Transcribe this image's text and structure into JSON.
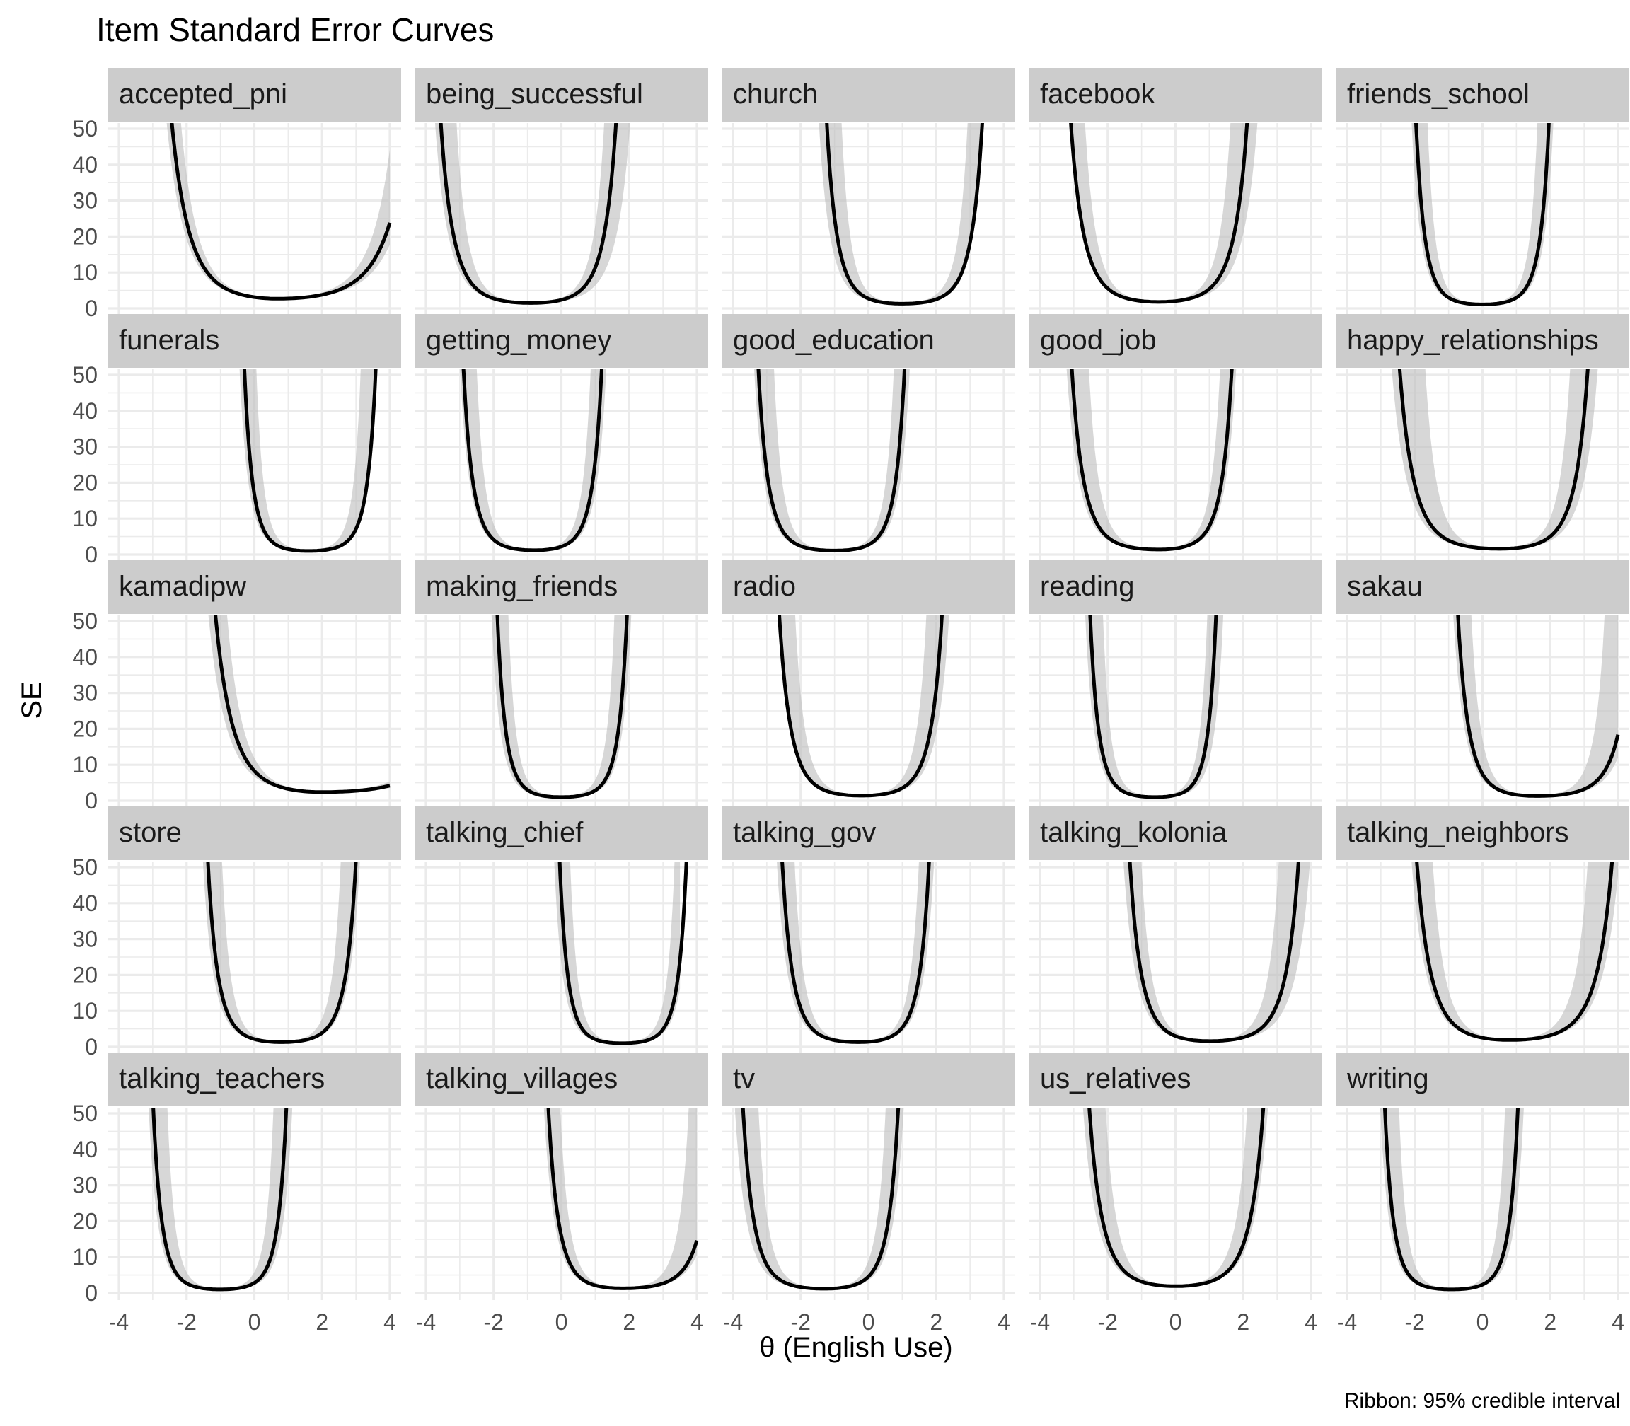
{
  "chart_data": {
    "type": "line",
    "title": "Item Standard Error Curves",
    "xlabel": "θ (English Use)",
    "ylabel": "SE",
    "caption": "Ribbon: 95% credible interval",
    "xlim": [
      -4,
      4
    ],
    "ylim": [
      0,
      50
    ],
    "x_ticks": [
      -4,
      -2,
      0,
      2,
      4
    ],
    "y_ticks": [
      0,
      10,
      20,
      30,
      40,
      50
    ],
    "grid": true,
    "facet_columns": 5,
    "colors": {
      "line": "#000000",
      "ribbon": "#bdbdbd",
      "strip": "#cccccc",
      "grid": "#ebebeb"
    },
    "panels": [
      {
        "name": "accepted_pni",
        "se": {
          "type": "curve",
          "m": 2.7,
          "center": 0.7,
          "kL": 0.3,
          "kR": 0.2,
          "x0": -4,
          "x1": 4
        },
        "ribbon": {
          "type": "band",
          "center": 0.7,
          "loBase": 2.5,
          "loL": 0.28,
          "loR": 0.18,
          "hiBase": 2.9,
          "hiL": 0.35,
          "hiR": 0.25,
          "x0": -4,
          "x1": 4
        }
      },
      {
        "name": "being_successful",
        "se": {
          "type": "curve",
          "m": 1.5,
          "center": -0.9,
          "kL": 0.5,
          "kR": 0.56,
          "x0": -4,
          "x1": 4
        },
        "ribbon": {
          "type": "band",
          "center": -0.9,
          "loBase": 1.4,
          "loL": 0.45,
          "loR": 0.42,
          "hiBase": 1.6,
          "hiL": 0.72,
          "hiR": 0.74,
          "x0": -4,
          "x1": 3.5
        }
      },
      {
        "name": "church",
        "se": {
          "type": "curve",
          "m": 1.3,
          "center": 1.0,
          "kL": 0.74,
          "kR": 0.66,
          "x0": -3.7,
          "x1": 4
        },
        "ribbon": {
          "type": "band",
          "center": 1.0,
          "loBase": 1.2,
          "loL": 0.62,
          "loR": 0.66,
          "hiBase": 1.5,
          "hiL": 1.1,
          "hiR": 0.95,
          "x0": -2.4,
          "x1": 4
        }
      },
      {
        "name": "facebook",
        "se": {
          "type": "curve",
          "m": 1.8,
          "center": -0.5,
          "kL": 0.5,
          "kR": 0.49,
          "x0": -4,
          "x1": 4
        },
        "ribbon": {
          "type": "band",
          "center": -0.5,
          "loBase": 1.7,
          "loL": 0.5,
          "loR": 0.4,
          "hiBase": 1.9,
          "hiL": 0.7,
          "hiR": 0.73,
          "x0": -4,
          "x1": 4
        }
      },
      {
        "name": "friends_school",
        "se": {
          "type": "curve",
          "m": 1.1,
          "center": 0.0,
          "kL": 1.0,
          "kR": 1.0,
          "x0": -3.7,
          "x1": 3.8
        },
        "ribbon": {
          "type": "band",
          "center": 0.0,
          "loBase": 1.0,
          "loL": 0.9,
          "loR": 0.9,
          "hiBase": 1.3,
          "hiL": 1.4,
          "hiR": 1.4,
          "x0": -2.8,
          "x1": 2.8
        }
      },
      {
        "name": "funerals",
        "se": {
          "type": "curve",
          "m": 1.0,
          "center": 1.6,
          "kL": 1.1,
          "kR": 1.0,
          "x0": -2.0,
          "x1": 4
        },
        "ribbon": {
          "type": "band",
          "center": 1.6,
          "loBase": 1.0,
          "loL": 0.95,
          "loR": 0.95,
          "hiBase": 1.3,
          "hiL": 1.55,
          "hiR": 1.55,
          "x0": -0.8,
          "x1": 3.8
        }
      },
      {
        "name": "getting_money",
        "se": {
          "type": "curve",
          "m": 1.2,
          "center": -0.8,
          "kL": 0.86,
          "kR": 0.95,
          "x0": -4,
          "x1": 3.0
        },
        "ribbon": {
          "type": "band",
          "center": -0.8,
          "loBase": 1.1,
          "loL": 0.8,
          "loR": 0.85,
          "hiBase": 1.4,
          "hiL": 1.25,
          "hiR": 1.3,
          "x0": -3.5,
          "x1": 2.0
        }
      },
      {
        "name": "good_education",
        "se": {
          "type": "curve",
          "m": 1.1,
          "center": -1.0,
          "kL": 0.76,
          "kR": 0.9,
          "x0": -4,
          "x1": 3.2
        },
        "ribbon": {
          "type": "band",
          "center": -1.0,
          "loBase": 1.0,
          "loL": 0.7,
          "loR": 0.8,
          "hiBase": 1.3,
          "hiL": 1.15,
          "hiR": 1.2,
          "x0": -4,
          "x1": 2.0
        }
      },
      {
        "name": "good_job",
        "se": {
          "type": "curve",
          "m": 1.4,
          "center": -0.5,
          "kL": 0.55,
          "kR": 0.77,
          "x0": -4,
          "x1": 3.8
        },
        "ribbon": {
          "type": "band",
          "center": -0.5,
          "loBase": 1.3,
          "loL": 0.5,
          "loR": 0.7,
          "hiBase": 1.6,
          "hiL": 0.82,
          "hiR": 1.05,
          "x0": -4,
          "x1": 2.7
        }
      },
      {
        "name": "happy_relationships",
        "se": {
          "type": "curve",
          "m": 1.6,
          "center": 0.5,
          "kL": 0.4,
          "kR": 0.51,
          "x0": -4,
          "x1": 4
        },
        "ribbon": {
          "type": "band",
          "center": 0.5,
          "loBase": 1.5,
          "loL": 0.35,
          "loR": 0.42,
          "hiBase": 1.8,
          "hiL": 0.7,
          "hiR": 0.77,
          "x0": -4,
          "x1": 4
        }
      },
      {
        "name": "kamadipw",
        "se": {
          "type": "curve",
          "m": 2.4,
          "center": 2.0,
          "kL": 0.31,
          "kR": 0.14,
          "x0": -4,
          "x1": 4
        },
        "ribbon": {
          "type": "band",
          "center": 2.0,
          "loBase": 2.2,
          "loL": 0.28,
          "loR": 0.12,
          "hiBase": 2.6,
          "hiL": 0.38,
          "hiR": 0.18,
          "x0": -4,
          "x1": 4
        }
      },
      {
        "name": "making_friends",
        "se": {
          "type": "curve",
          "m": 1.0,
          "center": 0.0,
          "kL": 1.1,
          "kR": 1.05,
          "x0": -3.6,
          "x1": 3.6
        },
        "ribbon": {
          "type": "band",
          "center": 0.0,
          "loBase": 0.9,
          "loL": 0.95,
          "loR": 0.95,
          "hiBase": 1.3,
          "hiL": 1.5,
          "hiR": 1.5,
          "x0": -2.5,
          "x1": 2.5
        }
      },
      {
        "name": "radio",
        "se": {
          "type": "curve",
          "m": 1.4,
          "center": -0.2,
          "kL": 0.61,
          "kR": 0.64,
          "x0": -4,
          "x1": 4
        },
        "ribbon": {
          "type": "band",
          "center": -0.2,
          "loBase": 1.3,
          "loL": 0.6,
          "loR": 0.55,
          "hiBase": 1.6,
          "hiL": 0.9,
          "hiR": 0.95,
          "x0": -4,
          "x1": 4
        }
      },
      {
        "name": "reading",
        "se": {
          "type": "curve",
          "m": 1.0,
          "center": -0.6,
          "kL": 1.07,
          "kR": 1.22,
          "x0": -4,
          "x1": 2.5
        },
        "ribbon": {
          "type": "band",
          "center": -0.6,
          "loBase": 0.9,
          "loL": 0.95,
          "loR": 1.0,
          "hiBase": 1.3,
          "hiL": 1.55,
          "hiR": 1.55,
          "x0": -3.3,
          "x1": 1.6
        }
      },
      {
        "name": "sakau",
        "se": {
          "type": "curve",
          "m": 1.3,
          "center": 1.6,
          "kL": 0.68,
          "kR": 0.46,
          "x0": -3.7,
          "x1": 4
        },
        "ribbon": {
          "type": "band",
          "center": 1.6,
          "loBase": 1.2,
          "loL": 0.62,
          "loR": 0.4,
          "hiBase": 1.5,
          "hiL": 0.95,
          "hiR": 0.88,
          "x0": -2.0,
          "x1": 4
        }
      },
      {
        "name": "store",
        "se": {
          "type": "curve",
          "m": 1.3,
          "center": 0.8,
          "kL": 0.78,
          "kR": 0.76,
          "x0": -3.7,
          "x1": 4
        },
        "ribbon": {
          "type": "band",
          "center": 0.8,
          "loBase": 1.2,
          "loL": 0.7,
          "loR": 0.7,
          "hiBase": 1.5,
          "hiL": 1.15,
          "hiR": 1.15,
          "x0": -2.6,
          "x1": 3.8
        }
      },
      {
        "name": "talking_chief",
        "se": {
          "type": "curve",
          "m": 1.0,
          "center": 1.8,
          "kL": 1.15,
          "kR": 1.1,
          "x0": -1.5,
          "x1": 4
        },
        "ribbon": {
          "type": "band",
          "center": 1.8,
          "loBase": 0.9,
          "loL": 1.0,
          "loR": 1.0,
          "hiBase": 1.3,
          "hiL": 1.55,
          "hiR": 1.55,
          "x0": -0.3,
          "x1": 3.5
        }
      },
      {
        "name": "talking_gov",
        "se": {
          "type": "curve",
          "m": 1.3,
          "center": -0.3,
          "kL": 0.73,
          "kR": 0.84,
          "x0": -4,
          "x1": 4
        },
        "ribbon": {
          "type": "band",
          "center": -0.3,
          "loBase": 1.2,
          "loL": 0.65,
          "loR": 0.75,
          "hiBase": 1.5,
          "hiL": 1.0,
          "hiR": 1.1,
          "x0": -3.8,
          "x1": 3.0
        }
      },
      {
        "name": "talking_kolonia",
        "se": {
          "type": "curve",
          "m": 1.6,
          "center": 1.0,
          "kL": 0.63,
          "kR": 0.5,
          "x0": -4,
          "x1": 4
        },
        "ribbon": {
          "type": "band",
          "center": 1.0,
          "loBase": 1.5,
          "loL": 0.55,
          "loR": 0.4,
          "hiBase": 1.8,
          "hiL": 0.83,
          "hiR": 0.8,
          "x0": -2.8,
          "x1": 4
        }
      },
      {
        "name": "talking_neighbors",
        "se": {
          "type": "curve",
          "m": 1.9,
          "center": 0.8,
          "kL": 0.44,
          "kR": 0.36,
          "x0": -4,
          "x1": 4
        },
        "ribbon": {
          "type": "band",
          "center": 0.8,
          "loBase": 1.8,
          "loL": 0.4,
          "loR": 0.32,
          "hiBase": 2.1,
          "hiL": 0.62,
          "hiR": 0.6,
          "x0": -4,
          "x1": 4
        }
      },
      {
        "name": "talking_teachers",
        "se": {
          "type": "curve",
          "m": 1.0,
          "center": -1.0,
          "kL": 1.0,
          "kR": 1.04,
          "x0": -3.9,
          "x1": 2.8
        },
        "ribbon": {
          "type": "band",
          "center": -1.0,
          "loBase": 0.9,
          "loL": 0.9,
          "loR": 0.9,
          "hiBase": 1.3,
          "hiL": 1.5,
          "hiR": 1.5,
          "x0": -3.4,
          "x1": 1.6
        }
      },
      {
        "name": "talking_villages",
        "se": {
          "type": "curve",
          "m": 1.3,
          "center": 1.8,
          "kL": 0.77,
          "kR": 0.5,
          "x0": -2.9,
          "x1": 4
        },
        "ribbon": {
          "type": "band",
          "center": 1.8,
          "loBase": 1.2,
          "loL": 0.7,
          "loR": 0.45,
          "hiBase": 1.5,
          "hiL": 1.05,
          "hiR": 0.92,
          "x0": -1.7,
          "x1": 4
        }
      },
      {
        "name": "tv",
        "se": {
          "type": "curve",
          "m": 1.2,
          "center": -1.3,
          "kL": 0.65,
          "kR": 0.79,
          "x0": -4,
          "x1": 3.4
        },
        "ribbon": {
          "type": "band",
          "center": -1.3,
          "loBase": 1.1,
          "loL": 0.55,
          "loR": 0.7,
          "hiBase": 1.4,
          "hiL": 0.95,
          "hiR": 1.1,
          "x0": -4,
          "x1": 2.2
        }
      },
      {
        "name": "us_relatives",
        "se": {
          "type": "curve",
          "m": 1.9,
          "center": 0.0,
          "kL": 0.51,
          "kR": 0.49,
          "x0": -4,
          "x1": 4
        },
        "ribbon": {
          "type": "band",
          "center": 0.0,
          "loBase": 1.8,
          "loL": 0.45,
          "loR": 0.45,
          "hiBase": 2.1,
          "hiL": 0.75,
          "hiR": 0.71,
          "x0": -4,
          "x1": 4
        }
      },
      {
        "name": "writing",
        "se": {
          "type": "curve",
          "m": 1.0,
          "center": -0.9,
          "kL": 1.0,
          "kR": 1.04,
          "x0": -4,
          "x1": 2.9
        },
        "ribbon": {
          "type": "band",
          "center": -0.9,
          "loBase": 0.9,
          "loL": 0.9,
          "loR": 0.9,
          "hiBase": 1.3,
          "hiL": 1.5,
          "hiR": 1.5,
          "x0": -3.5,
          "x1": 1.8
        }
      }
    ]
  }
}
